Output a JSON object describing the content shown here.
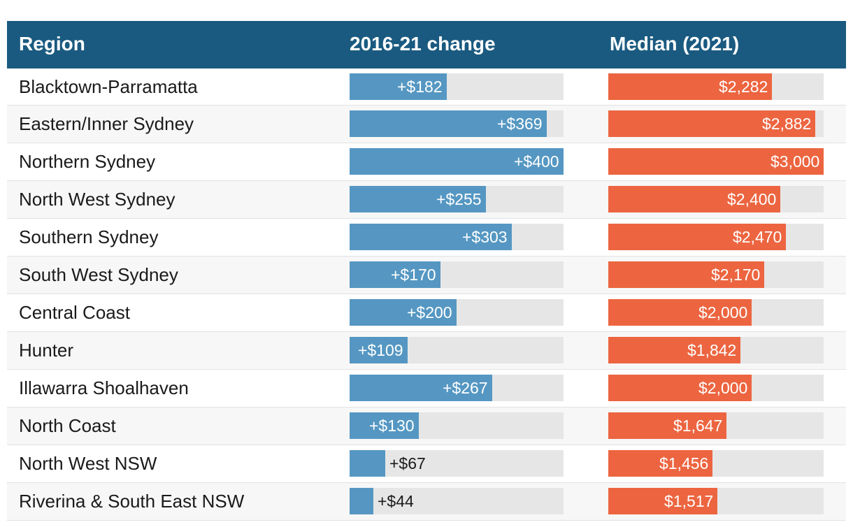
{
  "columns": {
    "region": "Region",
    "change": "2016-21 change",
    "median": "Median (2021)"
  },
  "colors": {
    "header_bg": "#1a5a80",
    "change_bar": "#5597c2",
    "median_bar": "#ec6540",
    "track": "#e6e6e6"
  },
  "chart_data": {
    "type": "bar",
    "categories": [
      "Blacktown-Parramatta",
      "Eastern/Inner Sydney",
      "Northern Sydney",
      "North West Sydney",
      "Southern Sydney",
      "South West Sydney",
      "Central Coast",
      "Hunter",
      "Illawarra Shoalhaven",
      "North Coast",
      "North West NSW",
      "Riverina & South East NSW"
    ],
    "series": [
      {
        "name": "2016-21 change",
        "values": [
          182,
          369,
          400,
          255,
          303,
          170,
          200,
          109,
          267,
          130,
          67,
          44
        ],
        "labels": [
          "+$182",
          "+$369",
          "+$400",
          "+$255",
          "+$303",
          "+$170",
          "+$200",
          "+$109",
          "+$267",
          "+$130",
          "+$67",
          "+$44"
        ],
        "max": 400
      },
      {
        "name": "Median (2021)",
        "values": [
          2282,
          2882,
          3000,
          2400,
          2470,
          2170,
          2000,
          1842,
          2000,
          1647,
          1456,
          1517
        ],
        "labels": [
          "$2,282",
          "$2,882",
          "$3,000",
          "$2,400",
          "$2,470",
          "$2,170",
          "$2,000",
          "$1,842",
          "$2,000",
          "$1,647",
          "$1,456",
          "$1,517"
        ],
        "max": 3000
      }
    ]
  }
}
